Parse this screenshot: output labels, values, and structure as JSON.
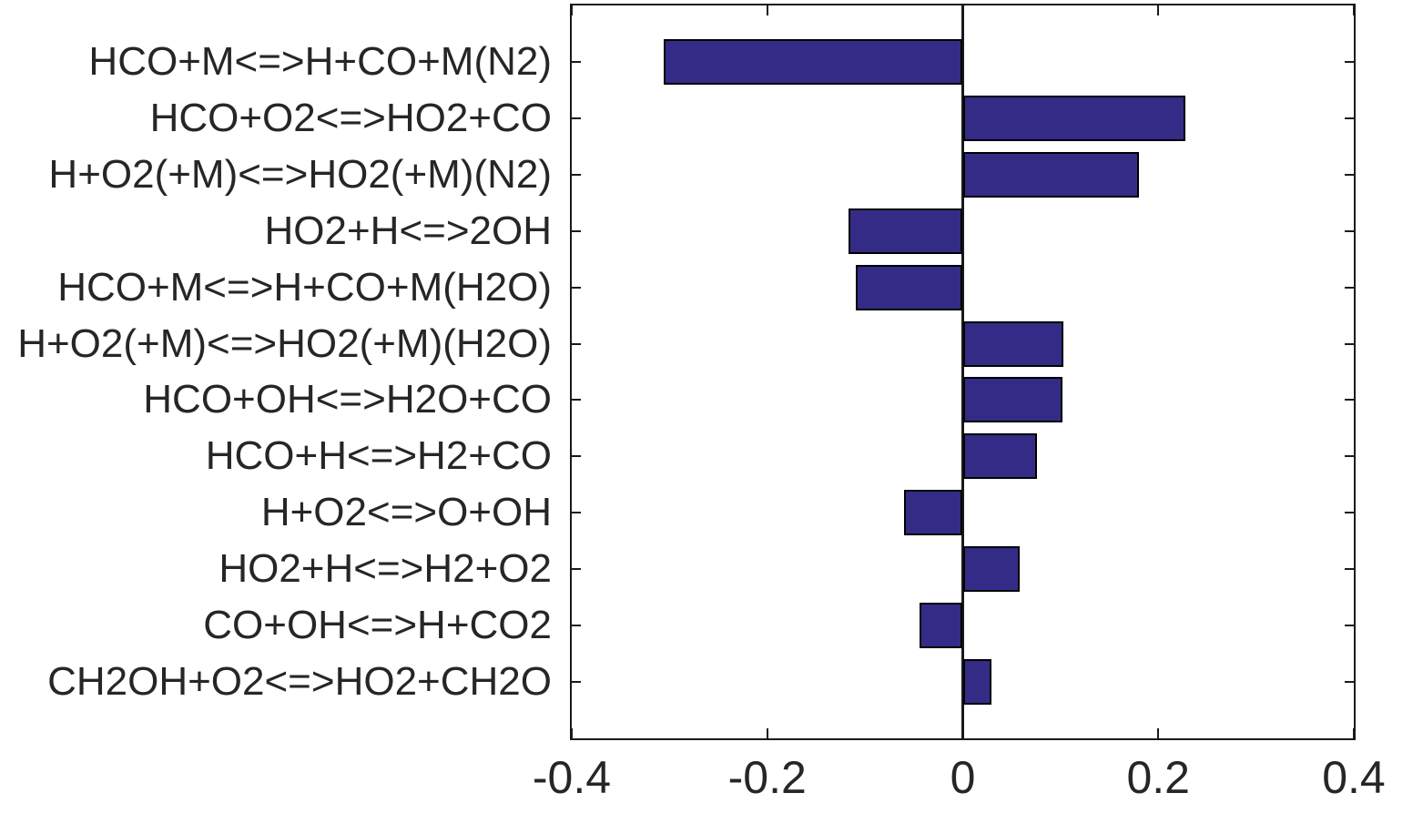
{
  "figure": {
    "background_color": "#ffffff"
  },
  "chart_data": {
    "type": "bar",
    "orientation": "horizontal",
    "title": "",
    "xlabel": "",
    "ylabel": "",
    "categories": [
      "HCO+M<=>H+CO+M(N2)",
      "HCO+O2<=>HO2+CO",
      "H+O2(+M)<=>HO2(+M)(N2)",
      "HO2+H<=>2OH",
      "HCO+M<=>H+CO+M(H2O)",
      "H+O2(+M)<=>HO2(+M)(H2O)",
      "HCO+OH<=>H2O+CO",
      "HCO+H<=>H2+CO",
      "H+O2<=>O+OH",
      "HO2+H<=>H2+O2",
      "CO+OH<=>H+CO2",
      "CH2OH+O2<=>HO2+CH2O"
    ],
    "values": [
      -0.306,
      0.228,
      0.18,
      -0.117,
      -0.109,
      0.103,
      0.102,
      0.076,
      -0.06,
      0.058,
      -0.044,
      0.029
    ],
    "xlim": [
      -0.4,
      0.4
    ],
    "x_tick_values": [
      -0.4,
      -0.2,
      0,
      0.2,
      0.4
    ],
    "x_tick_labels": [
      "-0.4",
      "-0.2",
      "0",
      "0.2",
      "0.4"
    ],
    "grid": false,
    "legend_position": "none",
    "zero_line": true,
    "bar_color": "#342B87",
    "bar_edge_color": "#000000",
    "axis_color": "#1A1A1A",
    "text_color": "#262626"
  }
}
